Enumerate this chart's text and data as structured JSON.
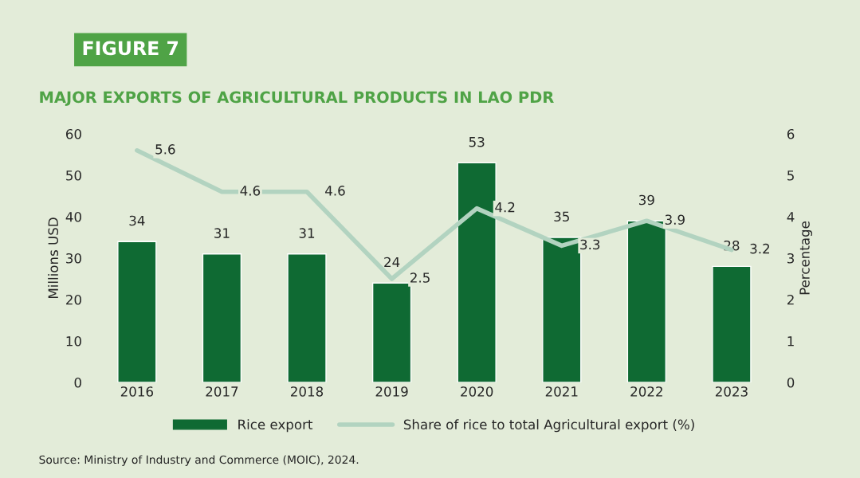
{
  "chart_data": {
    "type": "bar",
    "title": "FIGURE 7",
    "subtitle": "MAJOR EXPORTS OF AGRICULTURAL PRODUCTS IN LAO PDR",
    "ylabel": "Millions USD",
    "y2label": "Percentage",
    "categories": [
      "2016",
      "2017",
      "2018",
      "2019",
      "2020",
      "2021",
      "2022",
      "2023"
    ],
    "series": [
      {
        "name": "Rice export",
        "color": "#0f6a33",
        "values": [
          34,
          31,
          31,
          24,
          53,
          35,
          39,
          28
        ]
      },
      {
        "name": "Share of rice to total Agricultural export (%)",
        "type": "line",
        "axis": "y2",
        "color": "#b2d3c0",
        "values": [
          5.6,
          4.6,
          4.6,
          2.5,
          4.2,
          3.3,
          3.9,
          3.2
        ]
      }
    ],
    "ylim": [
      0,
      60
    ],
    "yticks": [
      0,
      10,
      20,
      30,
      40,
      50,
      60
    ],
    "y2lim": [
      0,
      6
    ],
    "y2ticks": [
      0,
      1,
      2,
      3,
      4,
      5,
      6
    ],
    "data_labels": true,
    "grid": false,
    "legend": "bottom",
    "marker": "none",
    "line_style": "solid",
    "annotations": [
      "Source: Ministry of Industry and Commerce (MOIC), 2024."
    ]
  }
}
